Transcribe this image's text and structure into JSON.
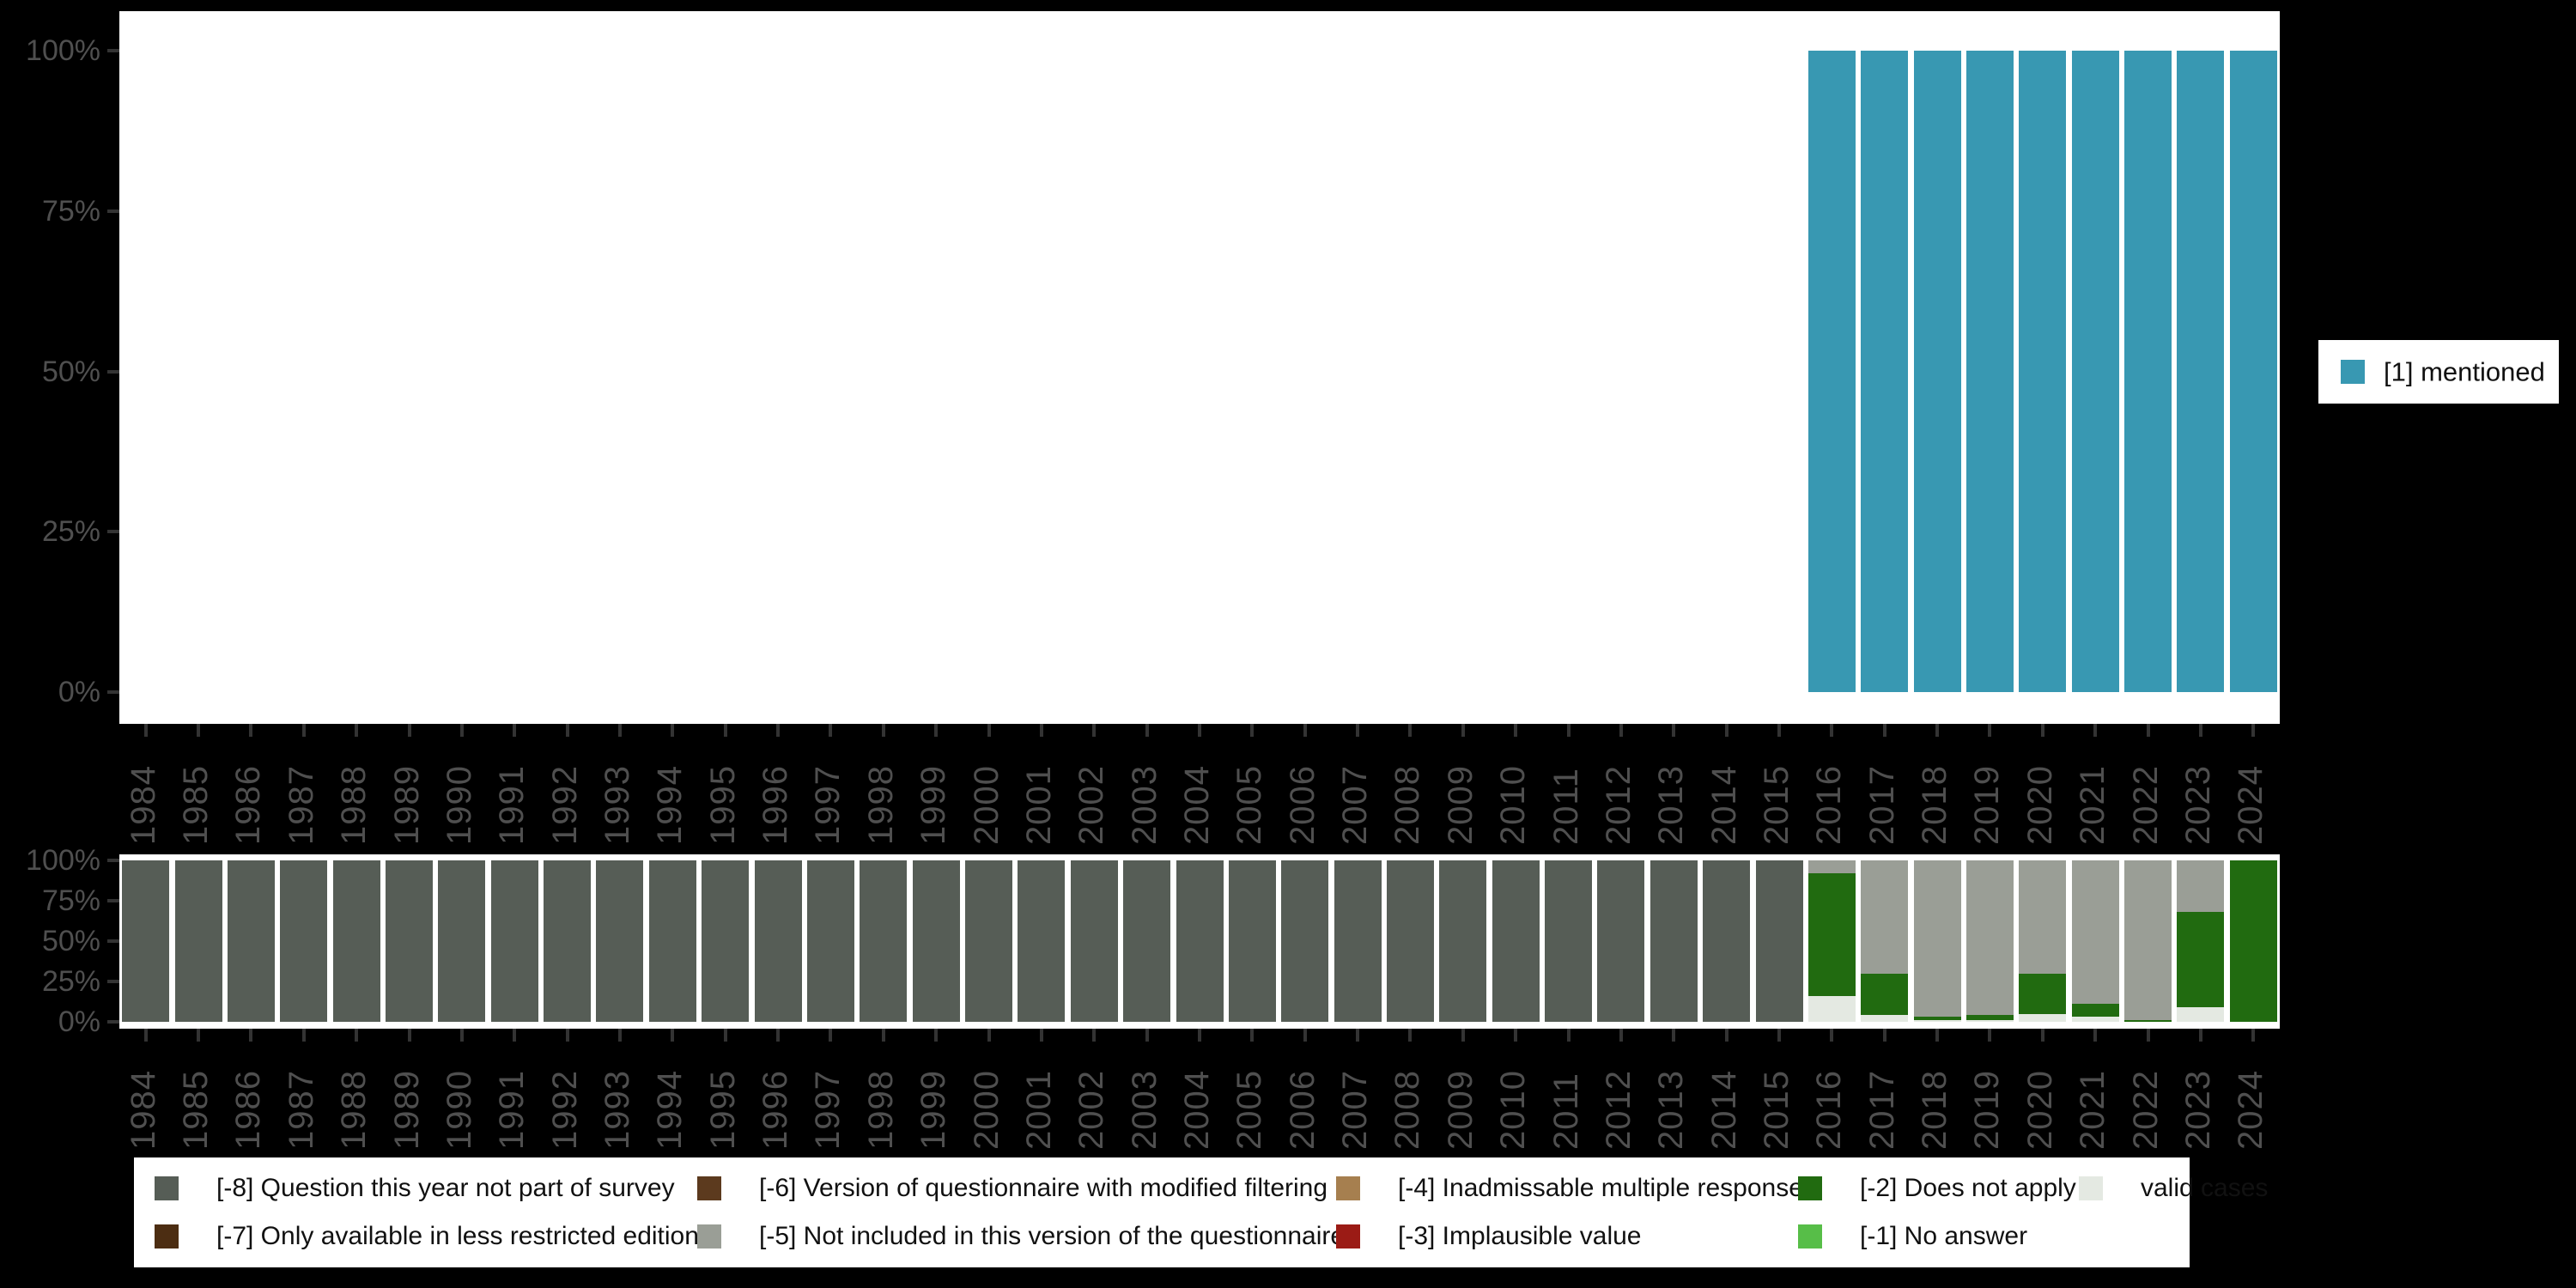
{
  "canvas": {
    "background": "#000000",
    "plot_background": "#ffffff"
  },
  "axis": {
    "text_color": "#4f4f4f",
    "tick_color": "#333333"
  },
  "top_legend": {
    "label": "[1] mentioned",
    "swatch_color": "#3898B2"
  },
  "bottom_legend": {
    "items": [
      {
        "label": "[-8] Question this year not part of survey",
        "color": "#565D56"
      },
      {
        "label": "[-7] Only available in less restricted edition",
        "color": "#4C2D12"
      },
      {
        "label": "[-6] Version of questionnaire with modified filtering",
        "color": "#5C3A1E"
      },
      {
        "label": "[-5] Not included in this version of the questionnaire",
        "color": "#9A9E96"
      },
      {
        "label": "[-4] Inadmissable multiple response",
        "color": "#A67F4F"
      },
      {
        "label": "[-3] Implausible value",
        "color": "#9B1B15"
      },
      {
        "label": "[-2] Does not apply",
        "color": "#216B10"
      },
      {
        "label": "[-1] No answer",
        "color": "#57BE48"
      },
      {
        "label": "valid cases",
        "color": "#E4E9E2"
      }
    ]
  },
  "chart_data": [
    {
      "id": "values-over-time",
      "type": "bar",
      "stacked": true,
      "unit": "percent",
      "grid": false,
      "legend_position": "right",
      "ylim": [
        0,
        100
      ],
      "yticks": [
        {
          "value": 100,
          "label": "100%"
        },
        {
          "value": 75,
          "label": "75%"
        },
        {
          "value": 50,
          "label": "50%"
        },
        {
          "value": 25,
          "label": "25%"
        },
        {
          "value": 0,
          "label": "0%"
        }
      ],
      "categories": [
        "1984",
        "1985",
        "1986",
        "1987",
        "1988",
        "1989",
        "1990",
        "1991",
        "1992",
        "1993",
        "1994",
        "1995",
        "1996",
        "1997",
        "1998",
        "1999",
        "2000",
        "2001",
        "2002",
        "2003",
        "2004",
        "2005",
        "2006",
        "2007",
        "2008",
        "2009",
        "2010",
        "2011",
        "2012",
        "2013",
        "2014",
        "2015",
        "2016",
        "2017",
        "2018",
        "2019",
        "2020",
        "2021",
        "2022",
        "2023",
        "2024"
      ],
      "series": [
        {
          "name": "[1] mentioned",
          "color": "#3898B2",
          "values": [
            0,
            0,
            0,
            0,
            0,
            0,
            0,
            0,
            0,
            0,
            0,
            0,
            0,
            0,
            0,
            0,
            0,
            0,
            0,
            0,
            0,
            0,
            0,
            0,
            0,
            0,
            0,
            0,
            0,
            0,
            0,
            0,
            100,
            100,
            100,
            100,
            100,
            100,
            100,
            100,
            100
          ]
        }
      ]
    },
    {
      "id": "missing-values-over-time",
      "type": "bar",
      "stacked": true,
      "unit": "percent",
      "grid": false,
      "legend_position": "bottom",
      "ylim": [
        0,
        100
      ],
      "yticks": [
        {
          "value": 100,
          "label": "100%"
        },
        {
          "value": 75,
          "label": "75%"
        },
        {
          "value": 50,
          "label": "50%"
        },
        {
          "value": 25,
          "label": "25%"
        },
        {
          "value": 0,
          "label": "0%"
        }
      ],
      "categories": [
        "1984",
        "1985",
        "1986",
        "1987",
        "1988",
        "1989",
        "1990",
        "1991",
        "1992",
        "1993",
        "1994",
        "1995",
        "1996",
        "1997",
        "1998",
        "1999",
        "2000",
        "2001",
        "2002",
        "2003",
        "2004",
        "2005",
        "2006",
        "2007",
        "2008",
        "2009",
        "2010",
        "2011",
        "2012",
        "2013",
        "2014",
        "2015",
        "2016",
        "2017",
        "2018",
        "2019",
        "2020",
        "2021",
        "2022",
        "2023",
        "2024"
      ],
      "series": [
        {
          "name": "valid cases",
          "color": "#E4E9E2",
          "values": [
            0,
            0,
            0,
            0,
            0,
            0,
            0,
            0,
            0,
            0,
            0,
            0,
            0,
            0,
            0,
            0,
            0,
            0,
            0,
            0,
            0,
            0,
            0,
            0,
            0,
            0,
            0,
            0,
            0,
            0,
            0,
            0,
            16,
            4,
            1,
            1,
            5,
            3,
            0,
            9,
            0
          ]
        },
        {
          "name": "[-1] No answer",
          "color": "#57BE48",
          "values": [
            0,
            0,
            0,
            0,
            0,
            0,
            0,
            0,
            0,
            0,
            0,
            0,
            0,
            0,
            0,
            0,
            0,
            0,
            0,
            0,
            0,
            0,
            0,
            0,
            0,
            0,
            0,
            0,
            0,
            0,
            0,
            0,
            0,
            0,
            0,
            0,
            0,
            0,
            0,
            0,
            0
          ]
        },
        {
          "name": "[-2] Does not apply",
          "color": "#216B10",
          "values": [
            0,
            0,
            0,
            0,
            0,
            0,
            0,
            0,
            0,
            0,
            0,
            0,
            0,
            0,
            0,
            0,
            0,
            0,
            0,
            0,
            0,
            0,
            0,
            0,
            0,
            0,
            0,
            0,
            0,
            0,
            0,
            0,
            76,
            26,
            2,
            3,
            25,
            8,
            1,
            59,
            100
          ]
        },
        {
          "name": "[-3] Implausible value",
          "color": "#9B1B15",
          "values": [
            0,
            0,
            0,
            0,
            0,
            0,
            0,
            0,
            0,
            0,
            0,
            0,
            0,
            0,
            0,
            0,
            0,
            0,
            0,
            0,
            0,
            0,
            0,
            0,
            0,
            0,
            0,
            0,
            0,
            0,
            0,
            0,
            0,
            0,
            0,
            0,
            0,
            0,
            0,
            0,
            0
          ]
        },
        {
          "name": "[-4] Inadmissable multiple response",
          "color": "#A67F4F",
          "values": [
            0,
            0,
            0,
            0,
            0,
            0,
            0,
            0,
            0,
            0,
            0,
            0,
            0,
            0,
            0,
            0,
            0,
            0,
            0,
            0,
            0,
            0,
            0,
            0,
            0,
            0,
            0,
            0,
            0,
            0,
            0,
            0,
            0,
            0,
            0,
            0,
            0,
            0,
            0,
            0,
            0
          ]
        },
        {
          "name": "[-5] Not included in this version of the questionnaire",
          "color": "#9A9E96",
          "values": [
            0,
            0,
            0,
            0,
            0,
            0,
            0,
            0,
            0,
            0,
            0,
            0,
            0,
            0,
            0,
            0,
            0,
            0,
            0,
            0,
            0,
            0,
            0,
            0,
            0,
            0,
            0,
            0,
            0,
            0,
            0,
            0,
            8,
            70,
            97,
            96,
            70,
            89,
            99,
            32,
            0
          ]
        },
        {
          "name": "[-6] Version of questionnaire with modified filtering",
          "color": "#5C3A1E",
          "values": [
            0,
            0,
            0,
            0,
            0,
            0,
            0,
            0,
            0,
            0,
            0,
            0,
            0,
            0,
            0,
            0,
            0,
            0,
            0,
            0,
            0,
            0,
            0,
            0,
            0,
            0,
            0,
            0,
            0,
            0,
            0,
            0,
            0,
            0,
            0,
            0,
            0,
            0,
            0,
            0,
            0
          ]
        },
        {
          "name": "[-7] Only available in less restricted edition",
          "color": "#4C2D12",
          "values": [
            0,
            0,
            0,
            0,
            0,
            0,
            0,
            0,
            0,
            0,
            0,
            0,
            0,
            0,
            0,
            0,
            0,
            0,
            0,
            0,
            0,
            0,
            0,
            0,
            0,
            0,
            0,
            0,
            0,
            0,
            0,
            0,
            0,
            0,
            0,
            0,
            0,
            0,
            0,
            0,
            0
          ]
        },
        {
          "name": "[-8] Question this year not part of survey",
          "color": "#565D56",
          "values": [
            100,
            100,
            100,
            100,
            100,
            100,
            100,
            100,
            100,
            100,
            100,
            100,
            100,
            100,
            100,
            100,
            100,
            100,
            100,
            100,
            100,
            100,
            100,
            100,
            100,
            100,
            100,
            100,
            100,
            100,
            100,
            100,
            0,
            0,
            0,
            0,
            0,
            0,
            0,
            0,
            0
          ]
        }
      ]
    }
  ]
}
